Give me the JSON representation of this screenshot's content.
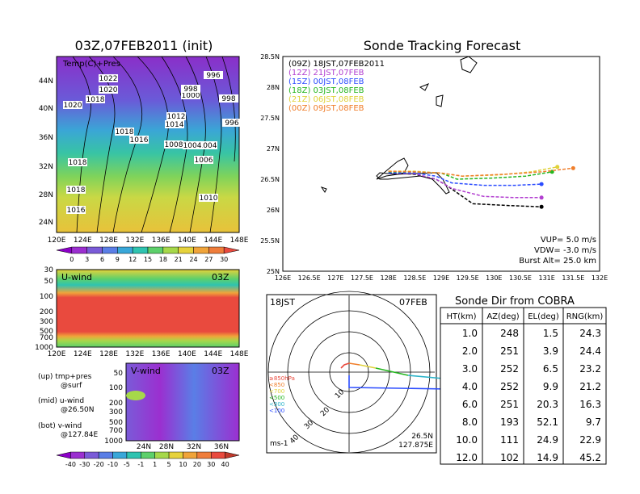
{
  "map_panel": {
    "title": "03Z,07FEB2011 (init)",
    "label": "Temp(C)+Pres",
    "lon_ticks": [
      "120E",
      "124E",
      "128E",
      "132E",
      "136E",
      "140E",
      "144E",
      "148E"
    ],
    "lat_ticks": [
      "44N",
      "40N",
      "36N",
      "32N",
      "28N",
      "24N"
    ],
    "pressure_labels": [
      "1022",
      "1020",
      "1018",
      "1020",
      "1018",
      "1016",
      "1018",
      "1014",
      "1012",
      "1010",
      "1008",
      "1006",
      "1004",
      "1000",
      "998",
      "996",
      "996",
      "998",
      "1004",
      "1006",
      "1010",
      "1008",
      "1016",
      "1018"
    ],
    "colorbar_ticks": [
      "0",
      "3",
      "6",
      "9",
      "12",
      "15",
      "18",
      "21",
      "24",
      "27",
      "30"
    ],
    "colorbar_colors": [
      "#8c00c8",
      "#9b2fd0",
      "#7a5bd8",
      "#5a7ee6",
      "#39a7d9",
      "#2fc3b0",
      "#5dd06b",
      "#a6d84a",
      "#e6d23c",
      "#f0a43a",
      "#ef7d3b",
      "#e94a3e"
    ]
  },
  "u_panel": {
    "label": "U-wind",
    "time": "03Z",
    "y_ticks": [
      "30",
      "50",
      "100",
      "200",
      "300",
      "500",
      "700",
      "1000"
    ],
    "x_ticks": [
      "120E",
      "124E",
      "128E",
      "132E",
      "136E",
      "140E",
      "144E",
      "148E"
    ]
  },
  "v_panel": {
    "label": "V-wind",
    "time": "03Z",
    "y_ticks": [
      "50",
      "100",
      "200",
      "300",
      "500",
      "700",
      "1000"
    ],
    "x_ticks": [
      "24N",
      "28N",
      "32N",
      "36N"
    ],
    "colorbar_ticks": [
      "-40",
      "-30",
      "-20",
      "-10",
      "-5",
      "-1",
      "1",
      "5",
      "10",
      "20",
      "30",
      "40"
    ],
    "colorbar_colors": [
      "#8c00c8",
      "#9b2fd0",
      "#7a5bd8",
      "#5a7ee6",
      "#39a7d9",
      "#2fc3b0",
      "#5dd06b",
      "#a6d84a",
      "#e6d23c",
      "#f0a43a",
      "#ef7d3b",
      "#e94a3e",
      "#c0392b"
    ]
  },
  "legend_notes": {
    "up": "(up) tmp+pres",
    "up2": "@surf",
    "mid": "(mid) u-wind",
    "mid2": "@26.50N",
    "bot": "(bot) v-wind",
    "bot2": "@127.84E"
  },
  "tracking": {
    "title": "Sonde Tracking Forecast",
    "x_ticks": [
      "126E",
      "126.5E",
      "127E",
      "127.5E",
      "128E",
      "128.5E",
      "129E",
      "129.5E",
      "130E",
      "130.5E",
      "131E",
      "131.5E",
      "132E"
    ],
    "y_ticks": [
      "28.5N",
      "28N",
      "27.5N",
      "27N",
      "26.5N",
      "26N",
      "25.5N",
      "25N"
    ],
    "legend": [
      {
        "name": "(09Z)  18JST,07FEB2011",
        "color": "#000000"
      },
      {
        "name": "(12Z)  21JST,07FEB",
        "color": "#b23fd0"
      },
      {
        "name": "(15Z)  00JST,08FEB",
        "color": "#2b4cff"
      },
      {
        "name": "(18Z)  03JST,08FEB",
        "color": "#25b61f"
      },
      {
        "name": "(21Z)  06JST,08FEB",
        "color": "#e0d23a"
      },
      {
        "name": "(00Z)  09JST,08FEB",
        "color": "#f07e2b"
      }
    ],
    "params": [
      "VUP=  5.0  m/s",
      "VDW=  -3.0  m/s",
      "Burst Alt=  25.0  km"
    ]
  },
  "chart_data": {
    "type": "line",
    "title": "Sonde Tracking Forecast",
    "xlim": [
      126,
      132
    ],
    "ylim": [
      25,
      28.5
    ],
    "series": [
      {
        "name": "(09Z) 18JST,07FEB2011",
        "x": [
          128.0,
          128.5,
          128.9,
          129.1,
          129.6,
          130.3,
          130.9
        ],
        "y": [
          26.6,
          26.58,
          26.5,
          26.4,
          26.1,
          26.07,
          26.05
        ]
      },
      {
        "name": "(12Z) 21JST,07FEB",
        "x": [
          128.0,
          128.5,
          128.9,
          129.2,
          129.8,
          130.4,
          130.9
        ],
        "y": [
          26.6,
          26.59,
          26.5,
          26.35,
          26.22,
          26.2,
          26.2
        ]
      },
      {
        "name": "(15Z) 00JST,08FEB",
        "x": [
          128.0,
          128.5,
          128.9,
          129.2,
          129.8,
          130.4,
          130.9
        ],
        "y": [
          26.6,
          26.6,
          26.55,
          26.44,
          26.4,
          26.4,
          26.42
        ]
      },
      {
        "name": "(18Z) 03JST,08FEB",
        "x": [
          128.0,
          128.5,
          129.0,
          129.3,
          130.0,
          130.6,
          131.1
        ],
        "y": [
          26.62,
          26.62,
          26.6,
          26.5,
          26.52,
          26.55,
          26.62
        ]
      },
      {
        "name": "(21Z) 06JST,08FEB",
        "x": [
          128.0,
          128.5,
          129.0,
          129.4,
          130.1,
          130.7,
          131.2
        ],
        "y": [
          26.63,
          26.63,
          26.6,
          26.55,
          26.57,
          26.62,
          26.7
        ]
      },
      {
        "name": "(00Z) 09JST,08FEB",
        "x": [
          128.0,
          128.5,
          129.0,
          129.4,
          130.2,
          130.9,
          131.5
        ],
        "y": [
          26.63,
          26.62,
          26.6,
          26.55,
          26.58,
          26.62,
          26.68
        ]
      }
    ]
  },
  "polar": {
    "time": "18JST",
    "date": "07FEB",
    "pressure_levels": [
      "≥850hPa",
      "<850",
      "<700",
      "<500",
      "<300",
      "<100"
    ],
    "pressure_colors": [
      "#e94a3e",
      "#f07e2b",
      "#e0d23a",
      "#25b61f",
      "#2bb3c9",
      "#2b4cff"
    ],
    "rings": [
      "10",
      "20",
      "30",
      "40"
    ],
    "location": "26.5N",
    "location2": "127.875E",
    "unit": "ms-1"
  },
  "table": {
    "title": "Sonde Dir from COBRA",
    "headers": [
      "HT(km)",
      "AZ(deg)",
      "EL(deg)",
      "RNG(km)"
    ],
    "rows": [
      [
        "1.0",
        "248",
        "1.5",
        "24.3"
      ],
      [
        "2.0",
        "251",
        "3.9",
        "24.4"
      ],
      [
        "3.0",
        "252",
        "6.5",
        "23.2"
      ],
      [
        "4.0",
        "252",
        "9.9",
        "21.2"
      ],
      [
        "6.0",
        "251",
        "20.3",
        "16.3"
      ],
      [
        "8.0",
        "193",
        "52.1",
        "9.7"
      ],
      [
        "10.0",
        "111",
        "24.9",
        "22.9"
      ],
      [
        "12.0",
        "102",
        "14.9",
        "45.2"
      ]
    ]
  }
}
